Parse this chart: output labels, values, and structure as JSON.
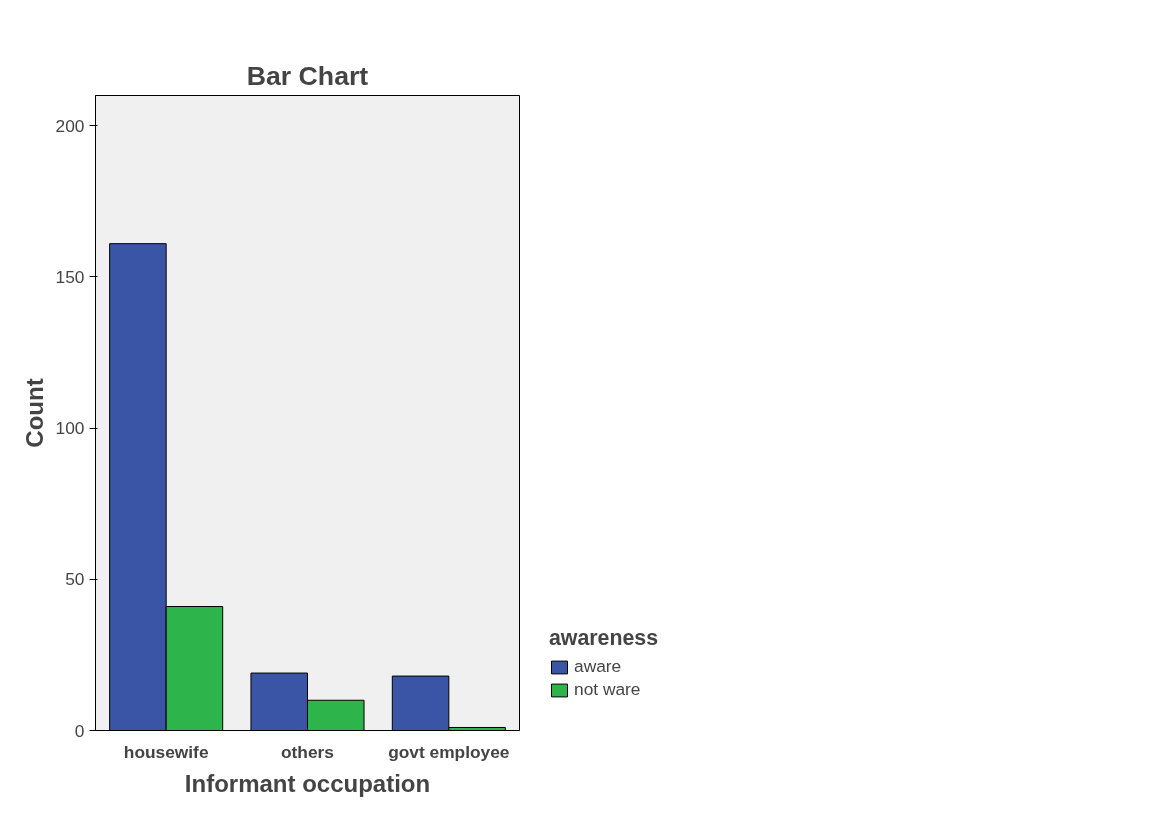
{
  "chart_data": {
    "type": "bar",
    "title": "Bar Chart",
    "xlabel": "Informant occupation",
    "ylabel": "Count",
    "legend_title": "awareness",
    "categories": [
      "housewife",
      "others",
      "govt employee"
    ],
    "series": [
      {
        "name": "aware",
        "color": "#3a55a6",
        "values": [
          161,
          19,
          18
        ]
      },
      {
        "name": "not ware",
        "color": "#2db44b",
        "values": [
          41,
          10,
          1
        ]
      }
    ],
    "ylim": [
      0,
      210
    ],
    "yticks": [
      0,
      50,
      100,
      150,
      200
    ],
    "grid": false,
    "legend": "right"
  }
}
